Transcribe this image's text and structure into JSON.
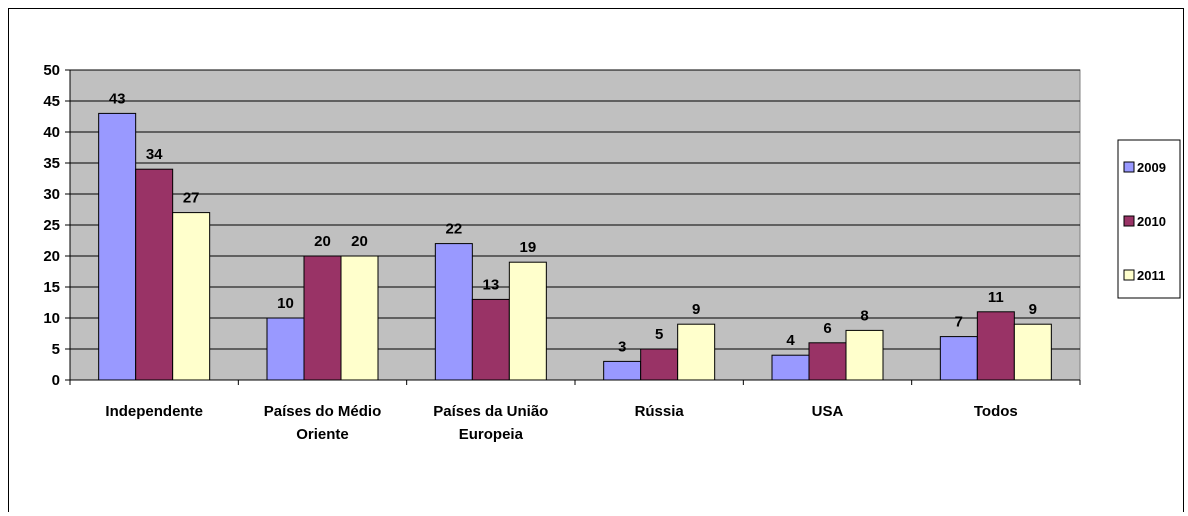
{
  "chart_data": {
    "type": "bar",
    "title": "",
    "xlabel": "",
    "ylabel": "",
    "ylim": [
      0,
      50
    ],
    "yticks": [
      0,
      5,
      10,
      15,
      20,
      25,
      30,
      35,
      40,
      45,
      50
    ],
    "grid": true,
    "legend_position": "right",
    "categories": [
      [
        "Independente"
      ],
      [
        "Países do Médio",
        "Oriente"
      ],
      [
        "Países da União",
        "Europeia"
      ],
      [
        "Rússia"
      ],
      [
        "USA"
      ],
      [
        "Todos"
      ]
    ],
    "series": [
      {
        "name": "2009",
        "color": "#9999ff",
        "values": [
          43,
          10,
          22,
          3,
          4,
          7
        ]
      },
      {
        "name": "2010",
        "color": "#993366",
        "values": [
          34,
          20,
          13,
          5,
          6,
          11
        ]
      },
      {
        "name": "2011",
        "color": "#ffffcc",
        "values": [
          27,
          20,
          19,
          9,
          8,
          9
        ]
      }
    ],
    "plot_background": "#c0c0c0"
  }
}
